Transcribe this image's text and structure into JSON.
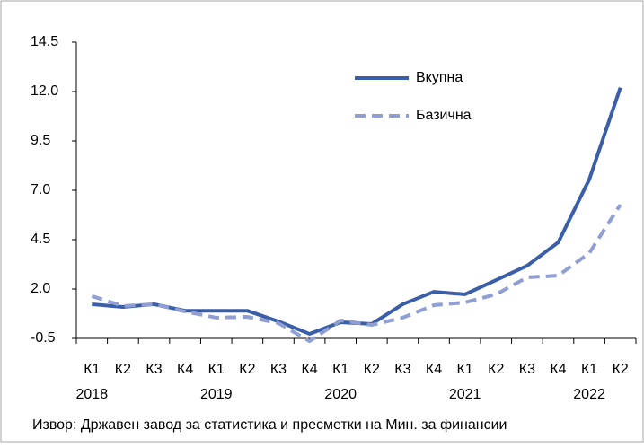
{
  "chart_data": {
    "type": "line",
    "categories": [
      "К1",
      "К2",
      "К3",
      "К4",
      "К1",
      "К2",
      "К3",
      "К4",
      "К1",
      "К2",
      "К3",
      "К4",
      "К1",
      "К2",
      "К3",
      "К4",
      "К1",
      "К2"
    ],
    "x_groups": [
      "2018",
      "2019",
      "2020",
      "2021",
      "2022"
    ],
    "series": [
      {
        "name": "Вкупна",
        "color": "#3a5ea8",
        "dash": false,
        "values": [
          1.23,
          1.09,
          1.23,
          0.9,
          0.9,
          0.9,
          0.36,
          -0.27,
          0.32,
          0.23,
          1.23,
          1.86,
          1.73,
          2.45,
          3.18,
          4.36,
          7.55,
          12.2
        ]
      },
      {
        "name": "Базична",
        "color": "#8f9fd3",
        "dash": true,
        "values": [
          1.64,
          1.14,
          1.23,
          0.86,
          0.55,
          0.59,
          0.27,
          -0.64,
          0.41,
          0.18,
          0.55,
          1.18,
          1.32,
          1.73,
          2.59,
          2.68,
          3.82,
          6.27
        ]
      }
    ],
    "ylim": [
      -0.5,
      14.5
    ],
    "yticks": [
      -0.5,
      {
        "value": 2,
        "label": "2.0"
      },
      4.5,
      {
        "value": 7,
        "label": "7.0"
      },
      9.5,
      {
        "value": 12,
        "label": "12.0"
      },
      14.5
    ],
    "grid": false,
    "legend": "top-right",
    "source": "Извор: Државен завод за статистика и пресметки на Мин. за финансии"
  }
}
